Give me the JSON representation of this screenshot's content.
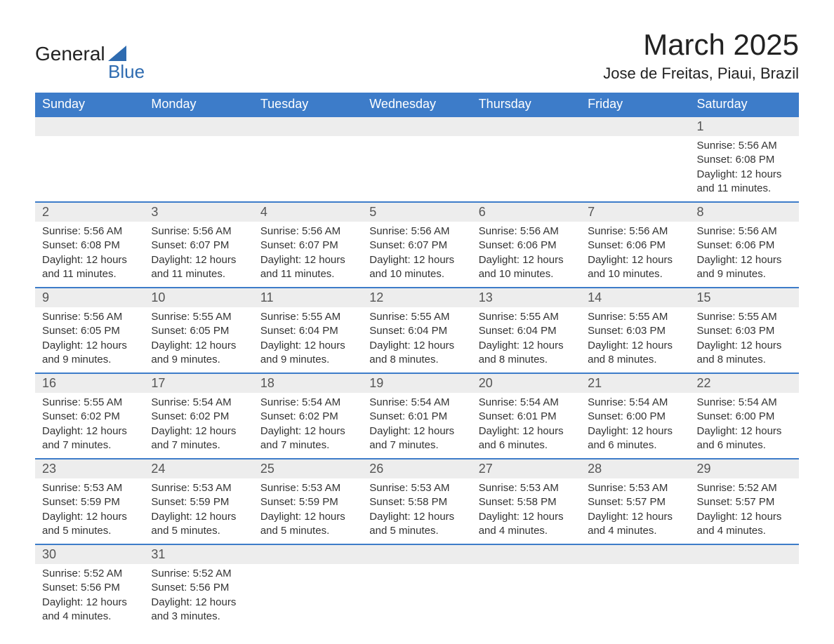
{
  "brand": {
    "line1": "General",
    "line2": "Blue"
  },
  "title": "March 2025",
  "location": "Jose de Freitas, Piaui, Brazil",
  "colors": {
    "header_bg": "#3d7cc9",
    "header_text": "#ffffff",
    "band_bg": "#ededed",
    "band_text": "#555555",
    "row_border": "#3d7cc9",
    "body_text": "#333333",
    "brand_blue": "#2e6bb0"
  },
  "weekdays": [
    "Sunday",
    "Monday",
    "Tuesday",
    "Wednesday",
    "Thursday",
    "Friday",
    "Saturday"
  ],
  "weeks": [
    [
      {},
      {},
      {},
      {},
      {},
      {},
      {
        "day": "1",
        "sunrise": "5:56 AM",
        "sunset": "6:08 PM",
        "daylight": "12 hours and 11 minutes."
      }
    ],
    [
      {
        "day": "2",
        "sunrise": "5:56 AM",
        "sunset": "6:08 PM",
        "daylight": "12 hours and 11 minutes."
      },
      {
        "day": "3",
        "sunrise": "5:56 AM",
        "sunset": "6:07 PM",
        "daylight": "12 hours and 11 minutes."
      },
      {
        "day": "4",
        "sunrise": "5:56 AM",
        "sunset": "6:07 PM",
        "daylight": "12 hours and 11 minutes."
      },
      {
        "day": "5",
        "sunrise": "5:56 AM",
        "sunset": "6:07 PM",
        "daylight": "12 hours and 10 minutes."
      },
      {
        "day": "6",
        "sunrise": "5:56 AM",
        "sunset": "6:06 PM",
        "daylight": "12 hours and 10 minutes."
      },
      {
        "day": "7",
        "sunrise": "5:56 AM",
        "sunset": "6:06 PM",
        "daylight": "12 hours and 10 minutes."
      },
      {
        "day": "8",
        "sunrise": "5:56 AM",
        "sunset": "6:06 PM",
        "daylight": "12 hours and 9 minutes."
      }
    ],
    [
      {
        "day": "9",
        "sunrise": "5:56 AM",
        "sunset": "6:05 PM",
        "daylight": "12 hours and 9 minutes."
      },
      {
        "day": "10",
        "sunrise": "5:55 AM",
        "sunset": "6:05 PM",
        "daylight": "12 hours and 9 minutes."
      },
      {
        "day": "11",
        "sunrise": "5:55 AM",
        "sunset": "6:04 PM",
        "daylight": "12 hours and 9 minutes."
      },
      {
        "day": "12",
        "sunrise": "5:55 AM",
        "sunset": "6:04 PM",
        "daylight": "12 hours and 8 minutes."
      },
      {
        "day": "13",
        "sunrise": "5:55 AM",
        "sunset": "6:04 PM",
        "daylight": "12 hours and 8 minutes."
      },
      {
        "day": "14",
        "sunrise": "5:55 AM",
        "sunset": "6:03 PM",
        "daylight": "12 hours and 8 minutes."
      },
      {
        "day": "15",
        "sunrise": "5:55 AM",
        "sunset": "6:03 PM",
        "daylight": "12 hours and 8 minutes."
      }
    ],
    [
      {
        "day": "16",
        "sunrise": "5:55 AM",
        "sunset": "6:02 PM",
        "daylight": "12 hours and 7 minutes."
      },
      {
        "day": "17",
        "sunrise": "5:54 AM",
        "sunset": "6:02 PM",
        "daylight": "12 hours and 7 minutes."
      },
      {
        "day": "18",
        "sunrise": "5:54 AM",
        "sunset": "6:02 PM",
        "daylight": "12 hours and 7 minutes."
      },
      {
        "day": "19",
        "sunrise": "5:54 AM",
        "sunset": "6:01 PM",
        "daylight": "12 hours and 7 minutes."
      },
      {
        "day": "20",
        "sunrise": "5:54 AM",
        "sunset": "6:01 PM",
        "daylight": "12 hours and 6 minutes."
      },
      {
        "day": "21",
        "sunrise": "5:54 AM",
        "sunset": "6:00 PM",
        "daylight": "12 hours and 6 minutes."
      },
      {
        "day": "22",
        "sunrise": "5:54 AM",
        "sunset": "6:00 PM",
        "daylight": "12 hours and 6 minutes."
      }
    ],
    [
      {
        "day": "23",
        "sunrise": "5:53 AM",
        "sunset": "5:59 PM",
        "daylight": "12 hours and 5 minutes."
      },
      {
        "day": "24",
        "sunrise": "5:53 AM",
        "sunset": "5:59 PM",
        "daylight": "12 hours and 5 minutes."
      },
      {
        "day": "25",
        "sunrise": "5:53 AM",
        "sunset": "5:59 PM",
        "daylight": "12 hours and 5 minutes."
      },
      {
        "day": "26",
        "sunrise": "5:53 AM",
        "sunset": "5:58 PM",
        "daylight": "12 hours and 5 minutes."
      },
      {
        "day": "27",
        "sunrise": "5:53 AM",
        "sunset": "5:58 PM",
        "daylight": "12 hours and 4 minutes."
      },
      {
        "day": "28",
        "sunrise": "5:53 AM",
        "sunset": "5:57 PM",
        "daylight": "12 hours and 4 minutes."
      },
      {
        "day": "29",
        "sunrise": "5:52 AM",
        "sunset": "5:57 PM",
        "daylight": "12 hours and 4 minutes."
      }
    ],
    [
      {
        "day": "30",
        "sunrise": "5:52 AM",
        "sunset": "5:56 PM",
        "daylight": "12 hours and 4 minutes."
      },
      {
        "day": "31",
        "sunrise": "5:52 AM",
        "sunset": "5:56 PM",
        "daylight": "12 hours and 3 minutes."
      },
      {},
      {},
      {},
      {},
      {}
    ]
  ],
  "labels": {
    "sunrise": "Sunrise: ",
    "sunset": "Sunset: ",
    "daylight": "Daylight: "
  }
}
